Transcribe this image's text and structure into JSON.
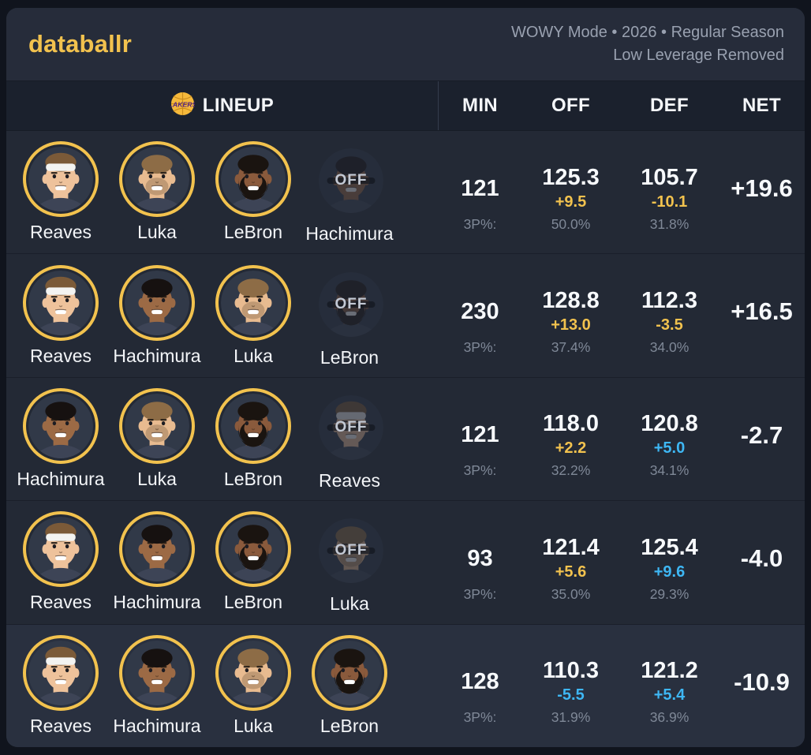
{
  "colors": {
    "gold": "#f2c24e",
    "blue": "#3eb7f4"
  },
  "header": {
    "logo_text": "databallr",
    "mode_line": "WOWY Mode • 2026 • Regular Season",
    "filter_line": "Low Leverage Removed"
  },
  "table": {
    "team_logo": "lakers-logo",
    "team_logo_text": "LAKERS",
    "lineup_label": "LINEUP",
    "columns": [
      "MIN",
      "OFF",
      "DEF",
      "NET"
    ],
    "three_pt_label": "3P%:",
    "off_badge_label": "OFF"
  },
  "players": {
    "Reaves": {
      "skin": "#eec29b",
      "hair": "#7b5a38",
      "headband": true,
      "beard": false,
      "stubble": false
    },
    "Luka": {
      "skin": "#e8bb90",
      "hair": "#8d6c46",
      "headband": false,
      "beard": false,
      "stubble": true
    },
    "LeBron": {
      "skin": "#8a5a3c",
      "hair": "#1a1410",
      "headband": false,
      "beard": true,
      "stubble": false
    },
    "Hachimura": {
      "skin": "#9c6a45",
      "hair": "#161110",
      "headband": false,
      "beard": false,
      "stubble": false
    }
  },
  "rows": [
    {
      "players": [
        {
          "name": "Reaves",
          "off": false
        },
        {
          "name": "Luka",
          "off": false
        },
        {
          "name": "LeBron",
          "off": false
        },
        {
          "name": "Hachimura",
          "off": true
        }
      ],
      "min": "121",
      "off": {
        "value": "125.3",
        "delta": "+9.5",
        "tone": "good",
        "pct": "50.0%"
      },
      "def": {
        "value": "105.7",
        "delta": "-10.1",
        "tone": "good",
        "pct": "31.8%"
      },
      "net": {
        "value": "+19.6",
        "tone": "good"
      },
      "highlight": false
    },
    {
      "players": [
        {
          "name": "Reaves",
          "off": false
        },
        {
          "name": "Hachimura",
          "off": false
        },
        {
          "name": "Luka",
          "off": false
        },
        {
          "name": "LeBron",
          "off": true
        }
      ],
      "min": "230",
      "off": {
        "value": "128.8",
        "delta": "+13.0",
        "tone": "good",
        "pct": "37.4%"
      },
      "def": {
        "value": "112.3",
        "delta": "-3.5",
        "tone": "good",
        "pct": "34.0%"
      },
      "net": {
        "value": "+16.5",
        "tone": "good"
      },
      "highlight": false
    },
    {
      "players": [
        {
          "name": "Hachimura",
          "off": false
        },
        {
          "name": "Luka",
          "off": false
        },
        {
          "name": "LeBron",
          "off": false
        },
        {
          "name": "Reaves",
          "off": true
        }
      ],
      "min": "121",
      "off": {
        "value": "118.0",
        "delta": "+2.2",
        "tone": "good",
        "pct": "32.2%"
      },
      "def": {
        "value": "120.8",
        "delta": "+5.0",
        "tone": "bad",
        "pct": "34.1%"
      },
      "net": {
        "value": "-2.7",
        "tone": "bad"
      },
      "highlight": false
    },
    {
      "players": [
        {
          "name": "Reaves",
          "off": false
        },
        {
          "name": "Hachimura",
          "off": false
        },
        {
          "name": "LeBron",
          "off": false
        },
        {
          "name": "Luka",
          "off": true
        }
      ],
      "min": "93",
      "off": {
        "value": "121.4",
        "delta": "+5.6",
        "tone": "good",
        "pct": "35.0%"
      },
      "def": {
        "value": "125.4",
        "delta": "+9.6",
        "tone": "bad",
        "pct": "29.3%"
      },
      "net": {
        "value": "-4.0",
        "tone": "bad"
      },
      "highlight": false
    },
    {
      "players": [
        {
          "name": "Reaves",
          "off": false
        },
        {
          "name": "Hachimura",
          "off": false
        },
        {
          "name": "Luka",
          "off": false
        },
        {
          "name": "LeBron",
          "off": false
        }
      ],
      "min": "128",
      "off": {
        "value": "110.3",
        "delta": "-5.5",
        "tone": "bad",
        "pct": "31.9%"
      },
      "def": {
        "value": "121.2",
        "delta": "+5.4",
        "tone": "bad",
        "pct": "36.9%"
      },
      "net": {
        "value": "-10.9",
        "tone": "bad"
      },
      "highlight": true
    }
  ]
}
